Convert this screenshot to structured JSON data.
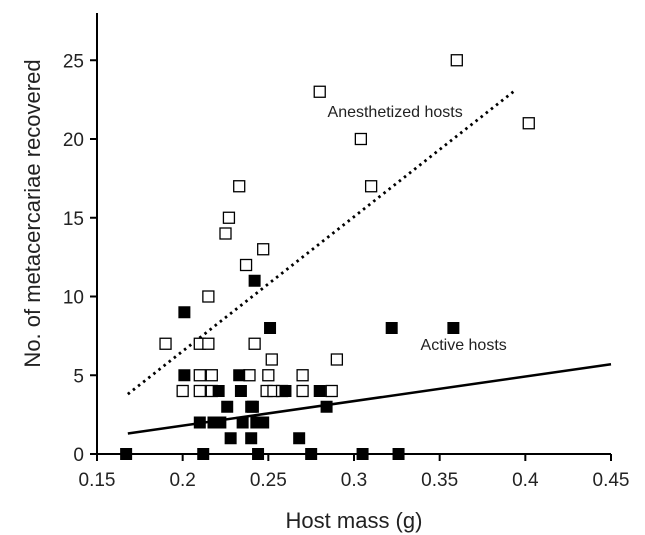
{
  "chart_data": {
    "type": "scatter",
    "title": "",
    "xlabel": "Host mass (g)",
    "ylabel": "No. of metacercariae recovered",
    "xlim": [
      0.15,
      0.45
    ],
    "ylim": [
      0,
      28
    ],
    "x_ticks": [
      "0.15",
      "0.2",
      "0.25",
      "0.3",
      "0.35",
      "0.4",
      "0.45"
    ],
    "y_ticks": [
      "0",
      "5",
      "10",
      "15",
      "20",
      "25"
    ],
    "grid": false,
    "legend": "none",
    "series": [
      {
        "name": "Anesthetized hosts",
        "marker": "open-square",
        "color": "#000000",
        "points": [
          [
            0.19,
            7
          ],
          [
            0.2,
            4
          ],
          [
            0.21,
            5
          ],
          [
            0.21,
            4
          ],
          [
            0.21,
            7
          ],
          [
            0.215,
            10
          ],
          [
            0.215,
            7
          ],
          [
            0.217,
            5
          ],
          [
            0.217,
            4
          ],
          [
            0.225,
            14
          ],
          [
            0.227,
            15
          ],
          [
            0.233,
            17
          ],
          [
            0.237,
            12
          ],
          [
            0.239,
            5
          ],
          [
            0.242,
            7
          ],
          [
            0.247,
            13
          ],
          [
            0.249,
            4
          ],
          [
            0.25,
            5
          ],
          [
            0.252,
            6
          ],
          [
            0.253,
            4
          ],
          [
            0.258,
            4
          ],
          [
            0.27,
            5
          ],
          [
            0.27,
            4
          ],
          [
            0.28,
            23
          ],
          [
            0.287,
            4
          ],
          [
            0.29,
            6
          ],
          [
            0.304,
            20
          ],
          [
            0.31,
            17
          ],
          [
            0.36,
            25
          ],
          [
            0.402,
            21
          ]
        ]
      },
      {
        "name": "Active hosts",
        "marker": "filled-square",
        "color": "#000000",
        "points": [
          [
            0.167,
            0
          ],
          [
            0.201,
            9
          ],
          [
            0.201,
            5
          ],
          [
            0.21,
            2
          ],
          [
            0.212,
            0
          ],
          [
            0.218,
            2
          ],
          [
            0.221,
            4
          ],
          [
            0.222,
            2
          ],
          [
            0.226,
            3
          ],
          [
            0.228,
            1
          ],
          [
            0.233,
            5
          ],
          [
            0.234,
            4
          ],
          [
            0.235,
            2
          ],
          [
            0.24,
            3
          ],
          [
            0.24,
            1
          ],
          [
            0.241,
            3
          ],
          [
            0.242,
            11
          ],
          [
            0.243,
            2
          ],
          [
            0.244,
            0
          ],
          [
            0.247,
            2
          ],
          [
            0.251,
            8
          ],
          [
            0.26,
            4
          ],
          [
            0.268,
            1
          ],
          [
            0.275,
            0
          ],
          [
            0.28,
            4
          ],
          [
            0.284,
            3
          ],
          [
            0.305,
            0
          ],
          [
            0.322,
            8
          ],
          [
            0.326,
            0
          ],
          [
            0.358,
            8
          ]
        ]
      }
    ],
    "trendlines": [
      {
        "series": "Anesthetized hosts",
        "style": "dotted",
        "x": [
          0.168,
          0.393
        ],
        "y": [
          3.8,
          23.0
        ]
      },
      {
        "series": "Active hosts",
        "style": "solid",
        "x": [
          0.168,
          0.45
        ],
        "y": [
          1.3,
          5.7
        ]
      }
    ],
    "annotations": [
      {
        "text": "Anesthetized hosts",
        "x": 0.324,
        "y": 21.4
      },
      {
        "text": "Active hosts",
        "x": 0.364,
        "y": 6.6
      }
    ]
  }
}
